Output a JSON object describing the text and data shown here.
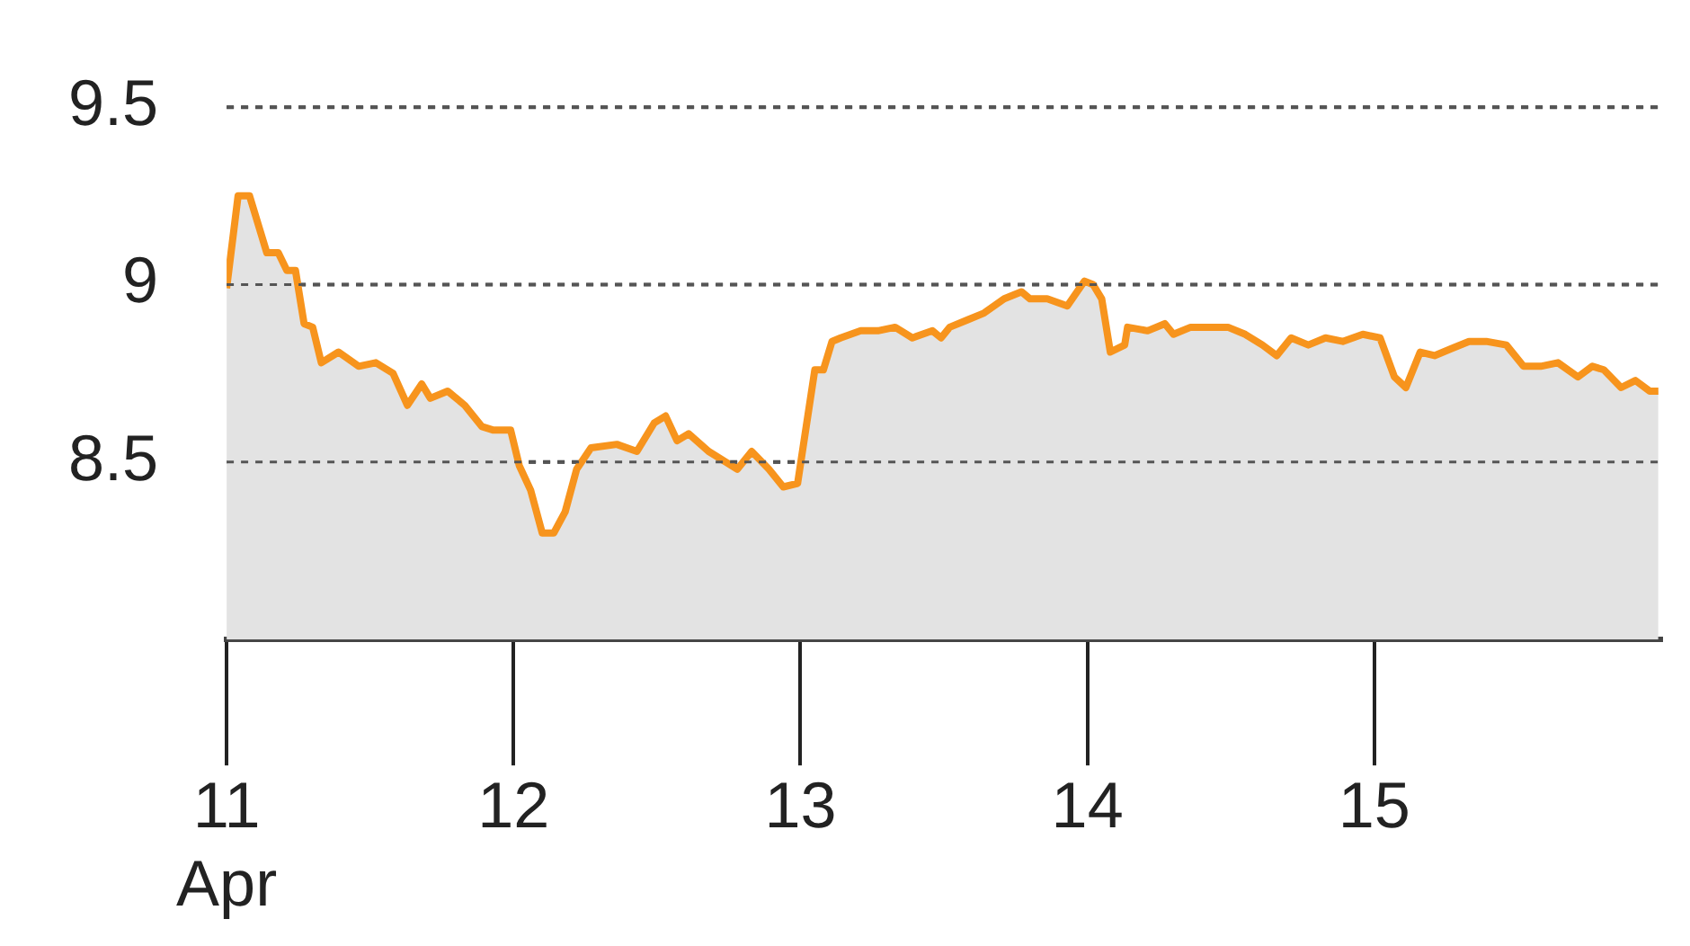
{
  "chart_data": {
    "type": "area",
    "xlim": [
      11,
      16
    ],
    "ylim": [
      8,
      9.5
    ],
    "xticks": [
      {
        "value": 11,
        "label": "11\nApr"
      },
      {
        "value": 12,
        "label": "12"
      },
      {
        "value": 13,
        "label": "13"
      },
      {
        "value": 14,
        "label": "14"
      },
      {
        "value": 15,
        "label": "15"
      }
    ],
    "yticks": [
      8.5,
      9,
      9.5
    ],
    "grid": "y",
    "line_style": "solid",
    "x": [
      11.0,
      11.04,
      11.08,
      11.14,
      11.18,
      11.21,
      11.24,
      11.27,
      11.3,
      11.33,
      11.39,
      11.46,
      11.52,
      11.58,
      11.63,
      11.68,
      11.71,
      11.77,
      11.83,
      11.89,
      11.93,
      11.99,
      12.02,
      12.06,
      12.1,
      12.14,
      12.18,
      12.22,
      12.27,
      12.36,
      12.43,
      12.49,
      12.53,
      12.57,
      12.61,
      12.68,
      12.74,
      12.78,
      12.83,
      12.89,
      12.94,
      12.99,
      13.02,
      13.05,
      13.08,
      13.11,
      13.14,
      13.21,
      13.27,
      13.33,
      13.39,
      13.46,
      13.49,
      13.52,
      13.58,
      13.64,
      13.71,
      13.77,
      13.8,
      13.86,
      13.93,
      13.99,
      14.02,
      14.05,
      14.08,
      14.13,
      14.14,
      14.21,
      14.27,
      14.3,
      14.36,
      14.43,
      14.49,
      14.55,
      14.61,
      14.66,
      14.71,
      14.77,
      14.83,
      14.89,
      14.96,
      15.02,
      15.07,
      15.11,
      15.16,
      15.21,
      15.27,
      15.33,
      15.39,
      15.46,
      15.52,
      15.58,
      15.64,
      15.71,
      15.76,
      15.8,
      15.86,
      15.91,
      15.96,
      15.99
    ],
    "series": [
      {
        "color": "#f7941d",
        "values": [
          8.99,
          9.25,
          9.25,
          9.09,
          9.09,
          9.04,
          9.04,
          8.89,
          8.88,
          8.78,
          8.81,
          8.77,
          8.78,
          8.75,
          8.66,
          8.72,
          8.68,
          8.7,
          8.66,
          8.6,
          8.59,
          8.59,
          8.49,
          8.42,
          8.3,
          8.3,
          8.36,
          8.48,
          8.54,
          8.55,
          8.53,
          8.61,
          8.63,
          8.56,
          8.58,
          8.53,
          8.5,
          8.48,
          8.53,
          8.48,
          8.43,
          8.44,
          8.6,
          8.76,
          8.76,
          8.84,
          8.85,
          8.87,
          8.87,
          8.88,
          8.85,
          8.87,
          8.85,
          8.88,
          8.9,
          8.92,
          8.96,
          8.98,
          8.96,
          8.96,
          8.94,
          9.01,
          9.0,
          8.96,
          8.81,
          8.83,
          8.88,
          8.87,
          8.89,
          8.86,
          8.88,
          8.88,
          8.88,
          8.86,
          8.83,
          8.8,
          8.85,
          8.83,
          8.85,
          8.84,
          8.86,
          8.85,
          8.74,
          8.71,
          8.81,
          8.8,
          8.82,
          8.84,
          8.84,
          8.83,
          8.77,
          8.77,
          8.78,
          8.74,
          8.77,
          8.76,
          8.71,
          8.73,
          8.7,
          8.7
        ]
      }
    ]
  }
}
